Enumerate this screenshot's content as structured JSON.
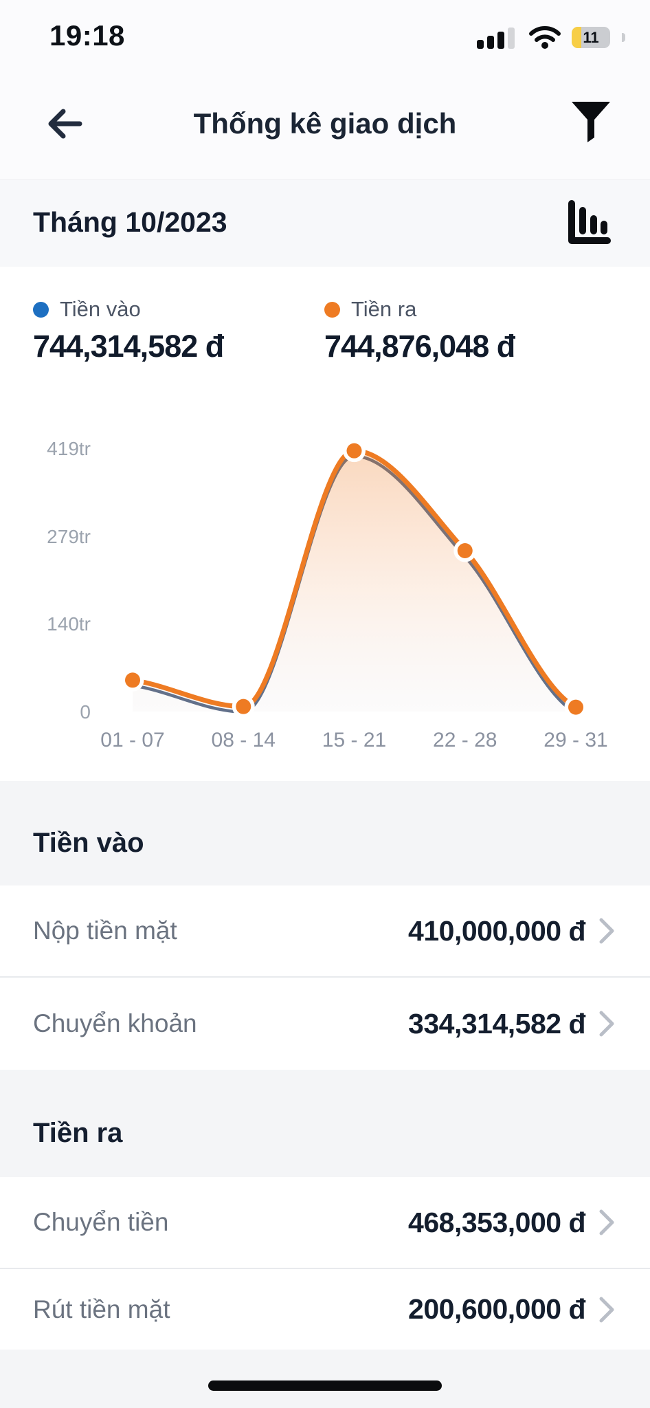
{
  "status_bar": {
    "time": "19:18",
    "battery_percent": "11"
  },
  "header": {
    "title": "Thống kê giao dịch"
  },
  "period": {
    "label": "Tháng 10/2023"
  },
  "summary": {
    "in": {
      "label": "Tiền vào",
      "value": "744,314,582 đ",
      "color": "#1d6fc1"
    },
    "out": {
      "label": "Tiền ra",
      "value": "744,876,048 đ",
      "color": "#ee7b23"
    }
  },
  "chart_data": {
    "type": "area",
    "x": [
      "01 - 07",
      "08 - 14",
      "15 - 21",
      "22 - 28",
      "29 - 31"
    ],
    "series": [
      {
        "name": "Tiền ra",
        "color": "#ee7b23",
        "values": [
          50,
          8,
          415,
          256,
          7
        ]
      },
      {
        "name": "Tiền vào",
        "color": "#5d6d88",
        "values": [
          48,
          6,
          413,
          253,
          5
        ]
      }
    ],
    "unit": "tr (million VND)",
    "yticks": [
      {
        "label": "419tr",
        "value": 419
      },
      {
        "label": "279tr",
        "value": 279
      },
      {
        "label": "140tr",
        "value": 140
      },
      {
        "label": "0",
        "value": 0
      }
    ],
    "ylim": [
      0,
      419
    ],
    "grid": false,
    "legend_position": "top"
  },
  "sections": [
    {
      "title": "Tiền vào",
      "rows": [
        {
          "label": "Nộp tiền mặt",
          "value": "410,000,000 đ"
        },
        {
          "label": "Chuyển khoản",
          "value": "334,314,582 đ"
        }
      ]
    },
    {
      "title": "Tiền ra",
      "rows": [
        {
          "label": "Chuyển tiền",
          "value": "468,353,000 đ"
        },
        {
          "label": "Rút tiền mặt",
          "value": "200,600,000 đ"
        }
      ]
    }
  ]
}
